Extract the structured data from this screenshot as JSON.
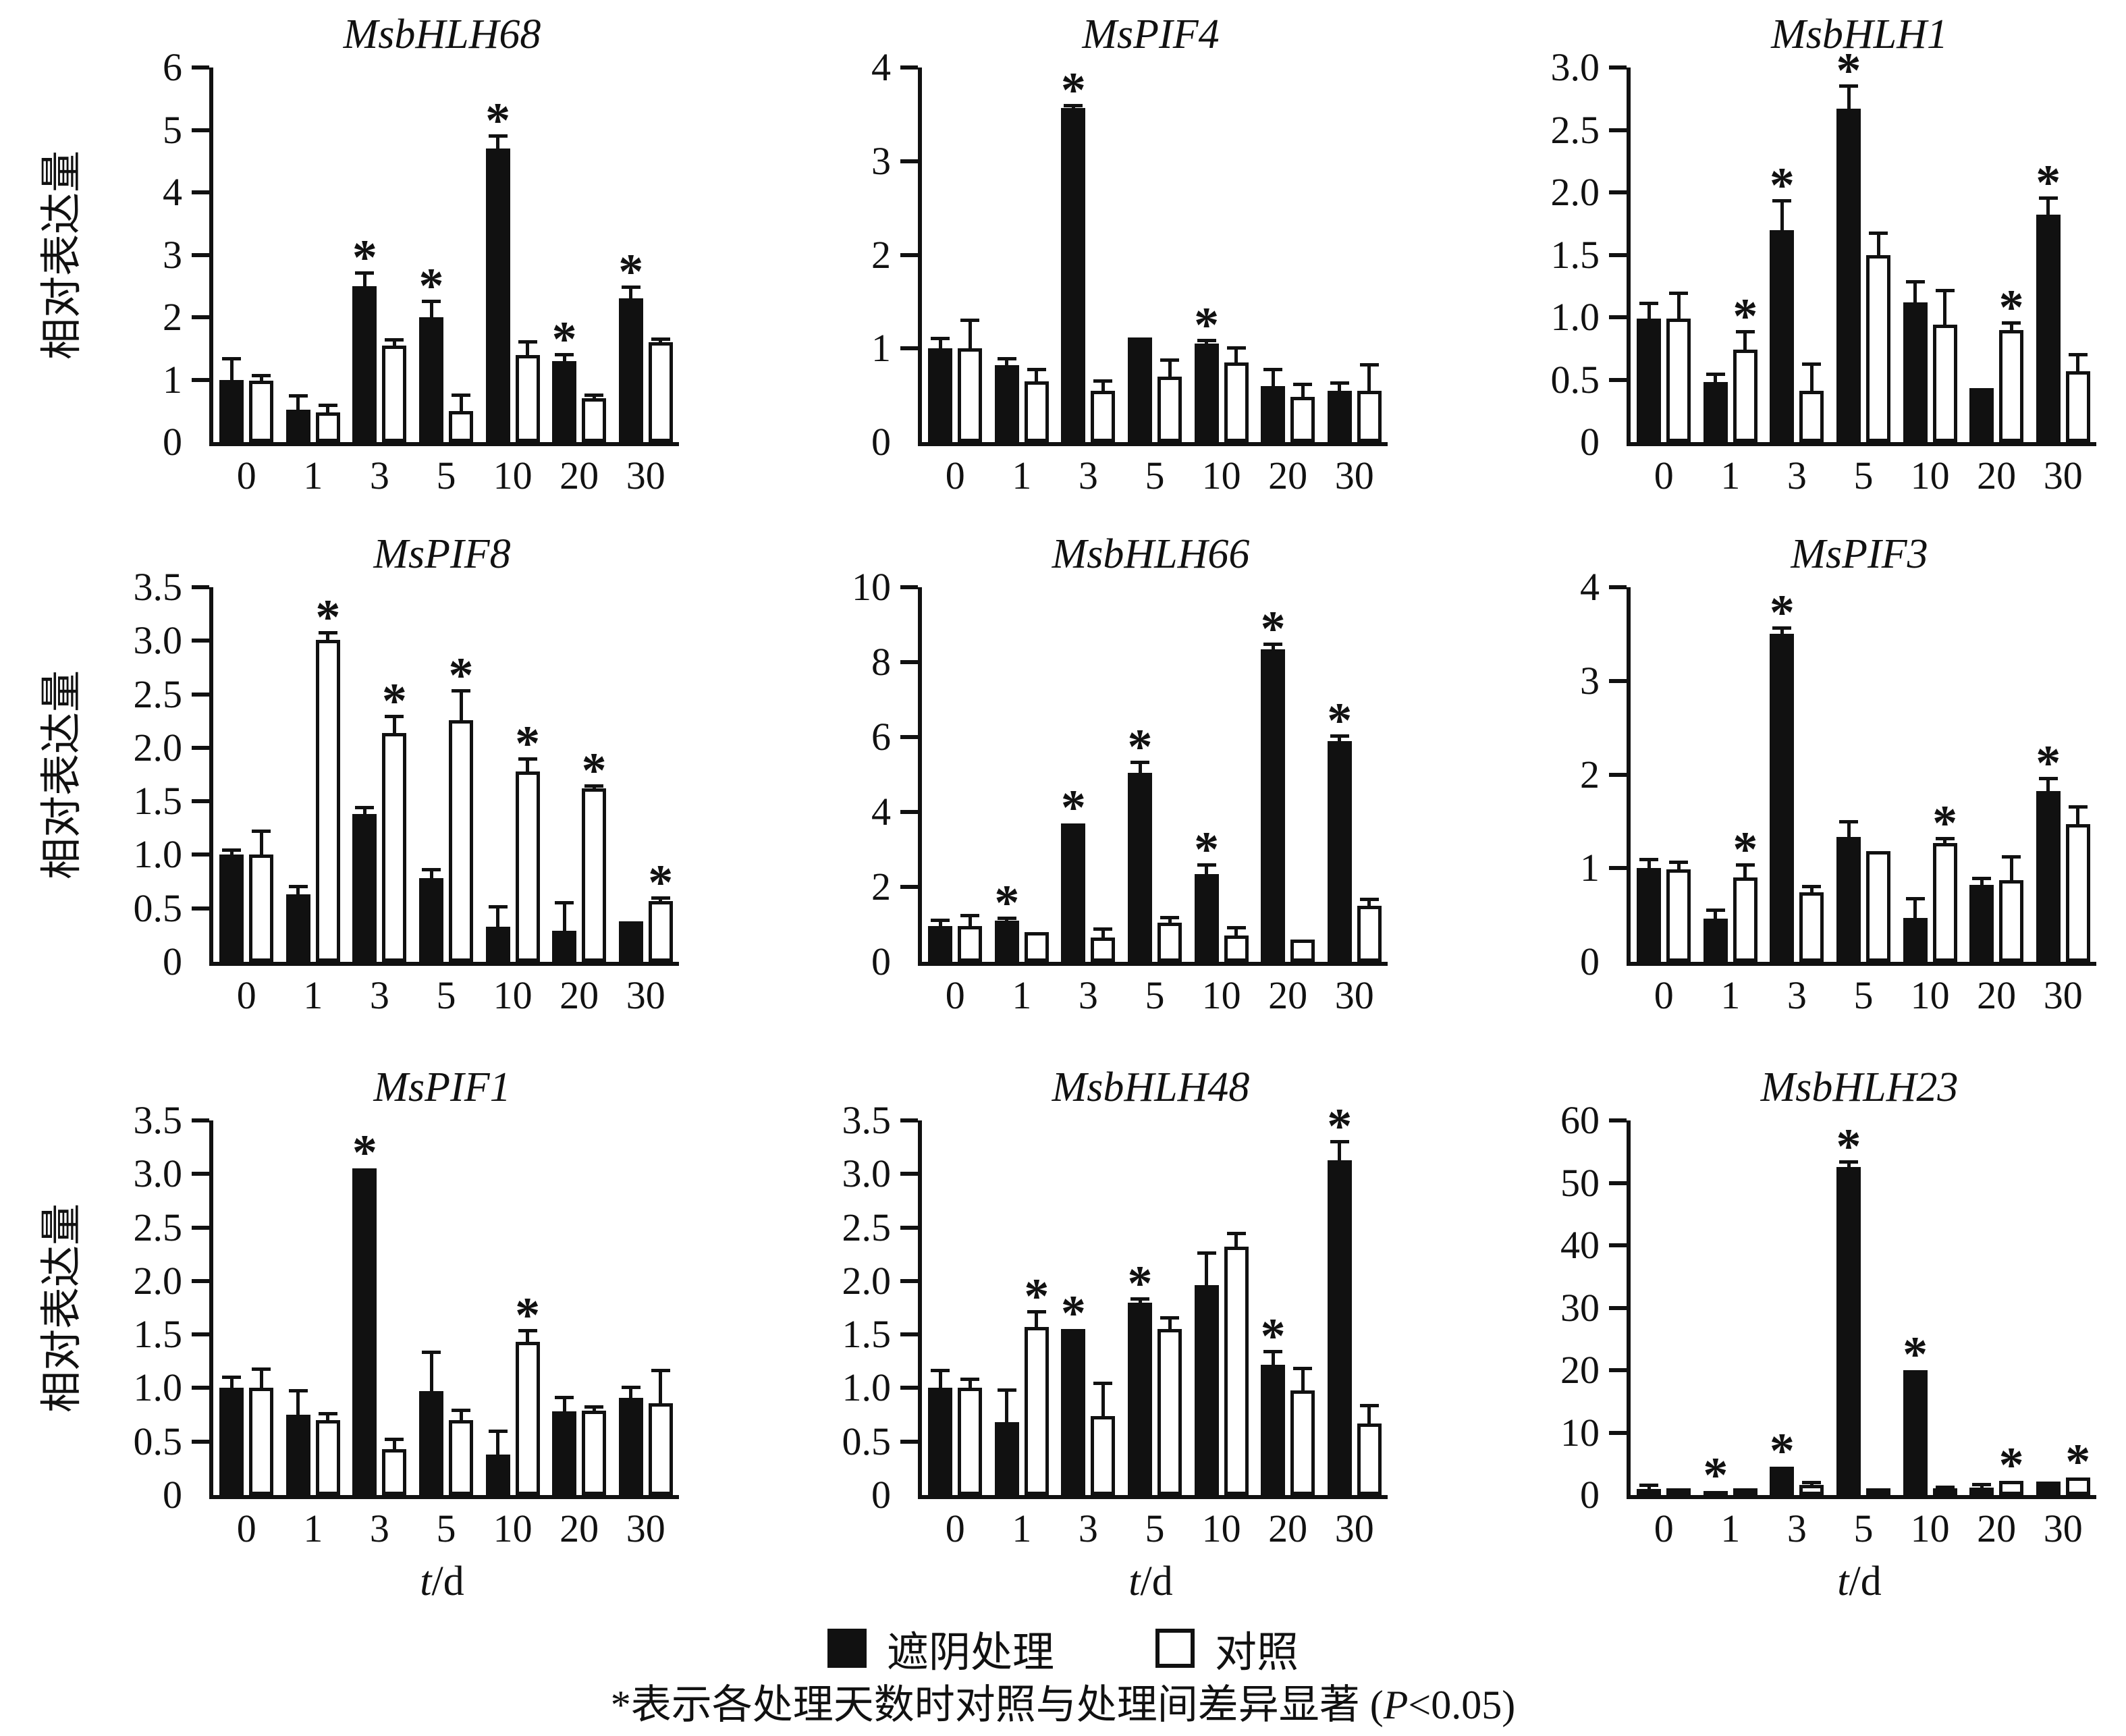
{
  "figure": {
    "y_axis_label": "相对表达量",
    "x_axis_label_italic": "t",
    "x_axis_label_rest": "/d",
    "legend": {
      "treatment": "遮阴处理",
      "control": "对照"
    },
    "footnote": {
      "part1": "*表示各处理天数时对照与处理间差异显著 (",
      "p_italic": "P",
      "part2": "<0.05)"
    },
    "colors": {
      "treatment": "#111111",
      "control": "#ffffff",
      "axis": "#111111"
    }
  },
  "chart_data": [
    {
      "type": "bar",
      "title": "MsbHLH68",
      "ylim": [
        0,
        6
      ],
      "yticks": [
        "0",
        "1",
        "2",
        "3",
        "4",
        "5",
        "6"
      ],
      "categories": [
        "0",
        "1",
        "3",
        "5",
        "10",
        "20",
        "30"
      ],
      "series": [
        {
          "name": "遮阴处理",
          "color": "#111111",
          "values": [
            1.0,
            0.52,
            2.5,
            2.0,
            4.7,
            1.3,
            2.3
          ],
          "errors": [
            0.33,
            0.22,
            0.2,
            0.25,
            0.2,
            0.1,
            0.18
          ],
          "significant": [
            false,
            false,
            true,
            true,
            true,
            true,
            true
          ]
        },
        {
          "name": "对照",
          "color": "#ffffff",
          "values": [
            0.98,
            0.48,
            1.55,
            0.5,
            1.4,
            0.7,
            1.6
          ],
          "errors": [
            0.08,
            0.1,
            0.08,
            0.25,
            0.2,
            0.05,
            0.04
          ],
          "significant": [
            false,
            false,
            false,
            false,
            false,
            false,
            false
          ]
        }
      ]
    },
    {
      "type": "bar",
      "title": "MsPIF4",
      "ylim": [
        0,
        4
      ],
      "yticks": [
        "0",
        "1",
        "2",
        "3",
        "4"
      ],
      "categories": [
        "0",
        "1",
        "3",
        "5",
        "10",
        "20",
        "30"
      ],
      "series": [
        {
          "name": "遮阴处理",
          "color": "#111111",
          "values": [
            1.0,
            0.82,
            3.57,
            1.12,
            1.05,
            0.6,
            0.55
          ],
          "errors": [
            0.1,
            0.07,
            0.02,
            0,
            0.03,
            0.17,
            0.08
          ],
          "significant": [
            false,
            false,
            true,
            false,
            true,
            false,
            false
          ]
        },
        {
          "name": "对照",
          "color": "#ffffff",
          "values": [
            1.0,
            0.65,
            0.55,
            0.7,
            0.85,
            0.48,
            0.55
          ],
          "errors": [
            0.3,
            0.12,
            0.1,
            0.17,
            0.15,
            0.13,
            0.27
          ],
          "significant": [
            false,
            false,
            false,
            false,
            false,
            false,
            false
          ]
        }
      ]
    },
    {
      "type": "bar",
      "title": "MsbHLH1",
      "ylim": [
        0,
        3
      ],
      "yticks": [
        "0",
        "0.5",
        "1.0",
        "1.5",
        "2.0",
        "2.5",
        "3.0"
      ],
      "categories": [
        "0",
        "1",
        "3",
        "5",
        "10",
        "20",
        "30"
      ],
      "series": [
        {
          "name": "遮阴处理",
          "color": "#111111",
          "values": [
            0.99,
            0.48,
            1.7,
            2.67,
            1.12,
            0.43,
            1.82
          ],
          "errors": [
            0.12,
            0.06,
            0.23,
            0.18,
            0.16,
            0,
            0.13
          ],
          "significant": [
            false,
            false,
            true,
            true,
            false,
            false,
            true
          ]
        },
        {
          "name": "对照",
          "color": "#ffffff",
          "values": [
            0.99,
            0.74,
            0.41,
            1.5,
            0.94,
            0.9,
            0.57
          ],
          "errors": [
            0.2,
            0.14,
            0.21,
            0.17,
            0.27,
            0.05,
            0.13
          ],
          "significant": [
            false,
            true,
            false,
            false,
            false,
            true,
            false
          ]
        }
      ]
    },
    {
      "type": "bar",
      "title": "MsPIF8",
      "ylim": [
        0,
        3.5
      ],
      "yticks": [
        "0",
        "0.5",
        "1.0",
        "1.5",
        "2.0",
        "2.5",
        "3.0",
        "3.5"
      ],
      "categories": [
        "0",
        "1",
        "3",
        "5",
        "10",
        "20",
        "30"
      ],
      "series": [
        {
          "name": "遮阴处理",
          "color": "#111111",
          "values": [
            1.0,
            0.63,
            1.38,
            0.78,
            0.33,
            0.29,
            0.38
          ],
          "errors": [
            0.04,
            0.07,
            0.06,
            0.08,
            0.18,
            0.26,
            0
          ],
          "significant": [
            false,
            false,
            false,
            false,
            false,
            false,
            false
          ]
        },
        {
          "name": "对照",
          "color": "#ffffff",
          "values": [
            1.0,
            3.01,
            2.14,
            2.26,
            1.78,
            1.62,
            0.57
          ],
          "errors": [
            0.22,
            0.06,
            0.15,
            0.27,
            0.11,
            0.02,
            0.02
          ],
          "significant": [
            false,
            true,
            true,
            true,
            true,
            true,
            true
          ]
        }
      ]
    },
    {
      "type": "bar",
      "title": "MsbHLH66",
      "ylim": [
        0,
        10
      ],
      "yticks": [
        "0",
        "2",
        "4",
        "6",
        "8",
        "10"
      ],
      "categories": [
        "0",
        "1",
        "3",
        "5",
        "10",
        "20",
        "30"
      ],
      "series": [
        {
          "name": "遮阴处理",
          "color": "#111111",
          "values": [
            0.95,
            1.1,
            3.7,
            5.05,
            2.35,
            8.35,
            5.9
          ],
          "errors": [
            0.15,
            0.06,
            0,
            0.27,
            0.22,
            0.12,
            0.12
          ],
          "significant": [
            false,
            true,
            true,
            true,
            true,
            true,
            true
          ]
        },
        {
          "name": "对照",
          "color": "#ffffff",
          "values": [
            0.95,
            0.8,
            0.65,
            1.05,
            0.7,
            0.6,
            1.5
          ],
          "errors": [
            0.28,
            0,
            0.22,
            0.12,
            0.2,
            0,
            0.16
          ],
          "significant": [
            false,
            false,
            false,
            false,
            false,
            false,
            false
          ]
        }
      ]
    },
    {
      "type": "bar",
      "title": "MsPIF3",
      "ylim": [
        0,
        4
      ],
      "yticks": [
        "0",
        "1",
        "2",
        "3",
        "4"
      ],
      "categories": [
        "0",
        "1",
        "3",
        "5",
        "10",
        "20",
        "30"
      ],
      "series": [
        {
          "name": "遮阴处理",
          "color": "#111111",
          "values": [
            1.0,
            0.46,
            3.5,
            1.33,
            0.47,
            0.82,
            1.82
          ],
          "errors": [
            0.09,
            0.09,
            0.06,
            0.16,
            0.2,
            0.07,
            0.13
          ],
          "significant": [
            false,
            false,
            true,
            false,
            false,
            false,
            true
          ]
        },
        {
          "name": "对照",
          "color": "#ffffff",
          "values": [
            0.99,
            0.9,
            0.74,
            1.18,
            1.27,
            0.87,
            1.47
          ],
          "errors": [
            0.07,
            0.13,
            0.06,
            0,
            0.04,
            0.25,
            0.18
          ],
          "significant": [
            false,
            true,
            false,
            false,
            true,
            false,
            false
          ]
        }
      ]
    },
    {
      "type": "bar",
      "title": "MsPIF1",
      "ylim": [
        0,
        3.5
      ],
      "yticks": [
        "0",
        "0.5",
        "1.0",
        "1.5",
        "2.0",
        "2.5",
        "3.0",
        "3.5"
      ],
      "categories": [
        "0",
        "1",
        "3",
        "5",
        "10",
        "20",
        "30"
      ],
      "series": [
        {
          "name": "遮阴处理",
          "color": "#111111",
          "values": [
            1.0,
            0.75,
            3.05,
            0.97,
            0.38,
            0.78,
            0.91
          ],
          "errors": [
            0.1,
            0.22,
            0,
            0.36,
            0.21,
            0.13,
            0.09
          ],
          "significant": [
            false,
            false,
            true,
            false,
            false,
            false,
            false
          ]
        },
        {
          "name": "对照",
          "color": "#ffffff",
          "values": [
            1.0,
            0.7,
            0.43,
            0.7,
            1.43,
            0.79,
            0.86
          ],
          "errors": [
            0.17,
            0.06,
            0.09,
            0.09,
            0.1,
            0.03,
            0.3
          ],
          "significant": [
            false,
            false,
            false,
            false,
            true,
            false,
            false
          ]
        }
      ]
    },
    {
      "type": "bar",
      "title": "MsbHLH48",
      "ylim": [
        0,
        3.5
      ],
      "yticks": [
        "0",
        "0.5",
        "1.0",
        "1.5",
        "2.0",
        "2.5",
        "3.0",
        "3.5"
      ],
      "categories": [
        "0",
        "1",
        "3",
        "5",
        "10",
        "20",
        "30"
      ],
      "series": [
        {
          "name": "遮阴处理",
          "color": "#111111",
          "values": [
            1.0,
            0.68,
            1.55,
            1.8,
            1.96,
            1.22,
            3.13
          ],
          "errors": [
            0.16,
            0.3,
            0,
            0.03,
            0.3,
            0.12,
            0.17
          ],
          "significant": [
            false,
            false,
            true,
            true,
            false,
            true,
            true
          ]
        },
        {
          "name": "对照",
          "color": "#ffffff",
          "values": [
            1.0,
            1.57,
            0.74,
            1.55,
            2.32,
            0.98,
            0.67
          ],
          "errors": [
            0.08,
            0.14,
            0.3,
            0.1,
            0.12,
            0.2,
            0.16
          ],
          "significant": [
            false,
            true,
            false,
            false,
            false,
            false,
            false
          ]
        }
      ]
    },
    {
      "type": "bar",
      "title": "MsbHLH23",
      "ylim": [
        0,
        60
      ],
      "yticks": [
        "0",
        "10",
        "20",
        "30",
        "40",
        "50",
        "60"
      ],
      "categories": [
        "0",
        "1",
        "3",
        "5",
        "10",
        "20",
        "30"
      ],
      "series": [
        {
          "name": "遮阴处理",
          "color": "#111111",
          "values": [
            1.0,
            0.7,
            4.5,
            52.5,
            20.0,
            1.2,
            2.2
          ],
          "errors": [
            0.5,
            0,
            0,
            0.8,
            0,
            0.4,
            0
          ],
          "significant": [
            false,
            true,
            true,
            true,
            true,
            false,
            false
          ]
        },
        {
          "name": "对照",
          "color": "#ffffff",
          "values": [
            0.8,
            0.4,
            1.6,
            0.9,
            1.0,
            2.3,
            2.8
          ],
          "errors": [
            0,
            0,
            0.3,
            0,
            0.2,
            0,
            0
          ],
          "significant": [
            false,
            false,
            false,
            false,
            false,
            true,
            true
          ]
        }
      ]
    }
  ]
}
